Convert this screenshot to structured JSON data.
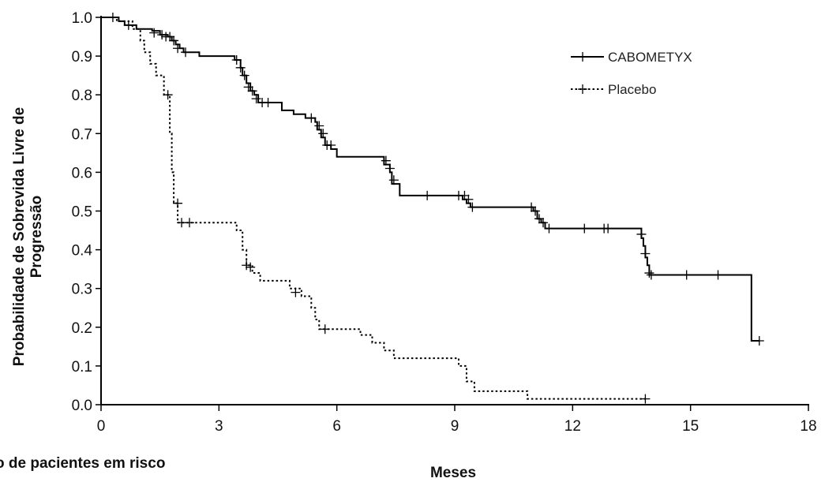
{
  "chart_data": {
    "type": "line",
    "xlabel": "Meses",
    "ylabel": [
      "Probabilidade de Sobrevida Livre de",
      "Progressão"
    ],
    "risk_label": "o de pacientes em risco",
    "xlim": [
      0,
      18
    ],
    "ylim": [
      0,
      1
    ],
    "x_ticks": [
      "0",
      "3",
      "6",
      "9",
      "12",
      "15",
      "18"
    ],
    "y_ticks": [
      "0.0",
      "0.1",
      "0.2",
      "0.3",
      "0.4",
      "0.5",
      "0.6",
      "0.7",
      "0.8",
      "0.9",
      "1.0"
    ],
    "legend_position": "top-right",
    "grid": false,
    "series": [
      {
        "name": "CABOMETYX",
        "style": "solid",
        "color": "#000000",
        "steps": [
          [
            0,
            1.0
          ],
          [
            0.45,
            0.99
          ],
          [
            0.6,
            0.98
          ],
          [
            0.9,
            0.97
          ],
          [
            1.3,
            0.965
          ],
          [
            1.5,
            0.955
          ],
          [
            1.7,
            0.95
          ],
          [
            1.8,
            0.94
          ],
          [
            1.9,
            0.93
          ],
          [
            2.0,
            0.92
          ],
          [
            2.1,
            0.91
          ],
          [
            2.5,
            0.9
          ],
          [
            3.4,
            0.89
          ],
          [
            3.55,
            0.87
          ],
          [
            3.6,
            0.85
          ],
          [
            3.7,
            0.83
          ],
          [
            3.8,
            0.81
          ],
          [
            3.9,
            0.8
          ],
          [
            4.0,
            0.78
          ],
          [
            4.6,
            0.76
          ],
          [
            4.9,
            0.75
          ],
          [
            5.2,
            0.74
          ],
          [
            5.45,
            0.73
          ],
          [
            5.5,
            0.71
          ],
          [
            5.6,
            0.69
          ],
          [
            5.7,
            0.67
          ],
          [
            5.85,
            0.66
          ],
          [
            6.0,
            0.64
          ],
          [
            7.2,
            0.62
          ],
          [
            7.35,
            0.6
          ],
          [
            7.4,
            0.57
          ],
          [
            7.6,
            0.54
          ],
          [
            9.2,
            0.53
          ],
          [
            9.3,
            0.52
          ],
          [
            9.4,
            0.51
          ],
          [
            11.0,
            0.5
          ],
          [
            11.1,
            0.48
          ],
          [
            11.2,
            0.47
          ],
          [
            11.3,
            0.455
          ],
          [
            13.75,
            0.43
          ],
          [
            13.8,
            0.41
          ],
          [
            13.85,
            0.38
          ],
          [
            13.9,
            0.36
          ],
          [
            13.95,
            0.335
          ],
          [
            16.55,
            0.165
          ]
        ],
        "end_x": 16.75,
        "censors": [
          [
            0.3,
            1.0
          ],
          [
            0.7,
            0.98
          ],
          [
            1.35,
            0.96
          ],
          [
            1.55,
            0.955
          ],
          [
            1.65,
            0.95
          ],
          [
            1.75,
            0.95
          ],
          [
            1.85,
            0.94
          ],
          [
            1.95,
            0.92
          ],
          [
            2.15,
            0.91
          ],
          [
            3.45,
            0.89
          ],
          [
            3.55,
            0.87
          ],
          [
            3.65,
            0.85
          ],
          [
            3.75,
            0.82
          ],
          [
            3.85,
            0.81
          ],
          [
            3.95,
            0.79
          ],
          [
            4.1,
            0.78
          ],
          [
            4.25,
            0.78
          ],
          [
            5.35,
            0.74
          ],
          [
            5.55,
            0.72
          ],
          [
            5.65,
            0.7
          ],
          [
            5.75,
            0.67
          ],
          [
            5.85,
            0.67
          ],
          [
            7.25,
            0.63
          ],
          [
            7.35,
            0.61
          ],
          [
            7.45,
            0.58
          ],
          [
            8.3,
            0.54
          ],
          [
            9.1,
            0.54
          ],
          [
            9.25,
            0.54
          ],
          [
            9.35,
            0.53
          ],
          [
            9.45,
            0.51
          ],
          [
            10.95,
            0.51
          ],
          [
            11.05,
            0.5
          ],
          [
            11.15,
            0.48
          ],
          [
            11.25,
            0.47
          ],
          [
            11.4,
            0.455
          ],
          [
            12.3,
            0.455
          ],
          [
            12.8,
            0.455
          ],
          [
            12.9,
            0.455
          ],
          [
            13.75,
            0.44
          ],
          [
            13.85,
            0.39
          ],
          [
            13.95,
            0.34
          ],
          [
            14.0,
            0.335
          ],
          [
            14.9,
            0.335
          ],
          [
            15.7,
            0.335
          ],
          [
            16.75,
            0.165
          ]
        ]
      },
      {
        "name": "Placebo",
        "style": "dotted",
        "color": "#000000",
        "steps": [
          [
            0,
            1.0
          ],
          [
            0.4,
            0.99
          ],
          [
            0.8,
            0.97
          ],
          [
            1.0,
            0.94
          ],
          [
            1.1,
            0.91
          ],
          [
            1.25,
            0.88
          ],
          [
            1.4,
            0.85
          ],
          [
            1.6,
            0.8
          ],
          [
            1.75,
            0.7
          ],
          [
            1.8,
            0.6
          ],
          [
            1.85,
            0.52
          ],
          [
            1.95,
            0.47
          ],
          [
            3.45,
            0.45
          ],
          [
            3.6,
            0.4
          ],
          [
            3.7,
            0.36
          ],
          [
            3.85,
            0.34
          ],
          [
            4.05,
            0.32
          ],
          [
            4.8,
            0.3
          ],
          [
            5.1,
            0.28
          ],
          [
            5.35,
            0.25
          ],
          [
            5.45,
            0.22
          ],
          [
            5.55,
            0.195
          ],
          [
            6.6,
            0.18
          ],
          [
            6.9,
            0.16
          ],
          [
            7.2,
            0.14
          ],
          [
            7.45,
            0.12
          ],
          [
            9.1,
            0.1
          ],
          [
            9.3,
            0.06
          ],
          [
            9.5,
            0.035
          ],
          [
            10.85,
            0.015
          ]
        ],
        "end_x": 13.85,
        "censors": [
          [
            1.7,
            0.8
          ],
          [
            1.95,
            0.52
          ],
          [
            2.05,
            0.47
          ],
          [
            2.25,
            0.47
          ],
          [
            3.7,
            0.36
          ],
          [
            3.8,
            0.355
          ],
          [
            4.95,
            0.29
          ],
          [
            5.7,
            0.195
          ],
          [
            13.85,
            0.015
          ]
        ]
      }
    ]
  }
}
